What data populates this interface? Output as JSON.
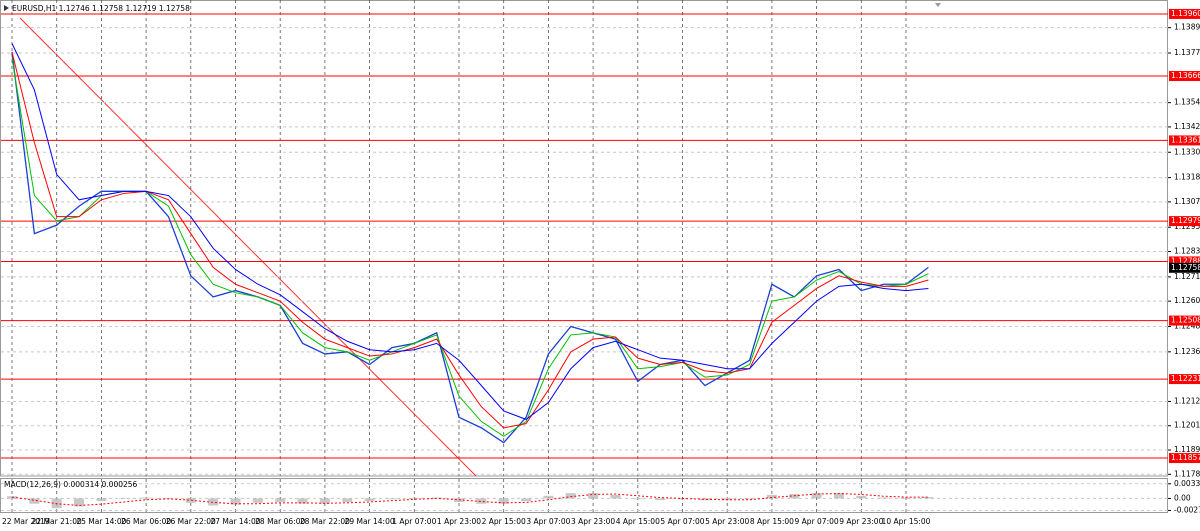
{
  "chart_data": [
    {
      "type": "line",
      "title": "EURUSD,H1 1.12746 1.12758 1.12719 1.12758",
      "categories": [
        "22 Mar 2019",
        null,
        "22 Mar 21:00",
        null,
        "25 Mar 14:00",
        null,
        "26 Mar 06:00",
        null,
        "26 Mar 22:00",
        null,
        "27 Mar 14:00",
        null,
        "28 Mar 06:00",
        null,
        "28 Mar 22:00",
        null,
        "29 Mar 14:00",
        null,
        "1 Apr 07:00",
        null,
        "1 Apr 23:00",
        null,
        "2 Apr 15:00",
        null,
        "3 Apr 07:00",
        null,
        "3 Apr 23:00",
        null,
        "4 Apr 15:00",
        null,
        "5 Apr 07:00",
        null,
        "5 Apr 23:00",
        null,
        "8 Apr 15:00",
        null,
        "9 Apr 07:00",
        null,
        "9 Apr 23:00",
        null,
        "10 Apr 15:00",
        null
      ],
      "series": [
        {
          "color": "#1a3fd6",
          "values": [
            1.1378,
            1.1292,
            1.1296,
            1.1305,
            1.1312,
            1.1312,
            1.1312,
            1.13,
            1.1272,
            1.1262,
            1.1265,
            1.1262,
            1.1258,
            1.124,
            1.1235,
            1.1236,
            1.123,
            1.1238,
            1.124,
            1.1245,
            1.1205,
            1.12,
            1.1193,
            1.1205,
            1.1235,
            1.1248,
            1.1245,
            1.1242,
            1.1222,
            1.123,
            1.1232,
            1.122,
            1.1226,
            1.1232,
            1.1268,
            1.1262,
            1.1272,
            1.1275,
            1.1265,
            1.1268,
            1.1268,
            1.1276
          ]
        },
        {
          "color": "#00c000",
          "values": [
            1.1375,
            1.131,
            1.1298,
            1.13,
            1.131,
            1.1312,
            1.1312,
            1.1305,
            1.1282,
            1.1268,
            1.1264,
            1.1262,
            1.1258,
            1.1245,
            1.1238,
            1.1236,
            1.1232,
            1.1236,
            1.124,
            1.1244,
            1.1215,
            1.1203,
            1.1196,
            1.1203,
            1.1228,
            1.1244,
            1.1245,
            1.1243,
            1.1228,
            1.1229,
            1.1231,
            1.1224,
            1.1225,
            1.123,
            1.126,
            1.1262,
            1.127,
            1.1274,
            1.1268,
            1.1267,
            1.1268,
            1.1273
          ]
        },
        {
          "color": "#ff0000",
          "values": [
            1.1378,
            1.1335,
            1.13,
            1.13,
            1.1308,
            1.1311,
            1.1312,
            1.1308,
            1.1292,
            1.1276,
            1.1268,
            1.1264,
            1.126,
            1.125,
            1.1242,
            1.1238,
            1.1234,
            1.1235,
            1.1238,
            1.1242,
            1.1225,
            1.121,
            1.12,
            1.1202,
            1.1218,
            1.1236,
            1.1242,
            1.1243,
            1.1233,
            1.123,
            1.1231,
            1.1227,
            1.1226,
            1.1228,
            1.125,
            1.1258,
            1.1266,
            1.1272,
            1.1269,
            1.1267,
            1.1267,
            1.127
          ]
        },
        {
          "color": "#0000ff",
          "values": [
            1.1382,
            1.136,
            1.132,
            1.1308,
            1.131,
            1.1312,
            1.1312,
            1.131,
            1.13,
            1.1285,
            1.1275,
            1.1268,
            1.1263,
            1.1255,
            1.1247,
            1.1241,
            1.1237,
            1.1236,
            1.1237,
            1.124,
            1.1232,
            1.122,
            1.1208,
            1.1204,
            1.1212,
            1.1228,
            1.1238,
            1.1241,
            1.1237,
            1.1233,
            1.1232,
            1.123,
            1.1228,
            1.1228,
            1.124,
            1.125,
            1.126,
            1.1267,
            1.1268,
            1.1266,
            1.1265,
            1.1266
          ]
        }
      ],
      "ylim": [
        1.11772,
        1.14026
      ],
      "yticks": [
        1.13895,
        1.13775,
        {
          "value": 1.1354,
          "label": "1.13540"
        },
        1.13425,
        1.13305,
        1.13185,
        {
          "value": 1.1307,
          "label": "1.13070"
        },
        {
          "value": 1.1295,
          "label": "1.12950"
        },
        1.12835,
        1.12715,
        {
          "value": 1.126,
          "label": "1.12600"
        },
        {
          "value": 1.1248,
          "label": "1.12480"
        },
        {
          "value": 1.1236,
          "label": "1.12360"
        },
        1.12125,
        {
          "value": 1.1201,
          "label": "1.12010"
        },
        1.11895,
        {
          "value": 1.1178,
          "label": "1.11780"
        }
      ],
      "levels": [
        {
          "value": 1.1396,
          "label": "1.13960"
        },
        1.13666,
        1.13361,
        1.12979,
        1.12788,
        1.12508,
        1.12231,
        1.11857
      ],
      "level_color": "#ff0000",
      "current_price": 1.12758,
      "grid": true
    },
    {
      "type": "bar",
      "title": "MACD(12,26,9) 0.000314 0.000256",
      "series": [
        {
          "color": "#b0b0b0",
          "values": [
            0.0005,
            -0.0012,
            -0.0022,
            -0.0018,
            -0.0006,
            0.0,
            0.0002,
            0.0001,
            -0.001,
            -0.0016,
            -0.0014,
            -0.001,
            -0.0008,
            -0.0012,
            -0.0012,
            -0.0008,
            -0.0006,
            -0.0002,
            0.0,
            0.0002,
            -0.0008,
            -0.0012,
            -0.0012,
            -0.0006,
            0.0006,
            0.0012,
            0.0012,
            0.0008,
            -0.0002,
            -0.0004,
            -0.0002,
            -0.0004,
            -0.0004,
            -0.0002,
            0.0008,
            0.001,
            0.0012,
            0.0012,
            0.0006,
            0.0002,
            0.0002,
            0.0003
          ]
        },
        {
          "color": "#ff0000",
          "values": [
            0.0003,
            -0.0004,
            -0.0012,
            -0.0016,
            -0.0013,
            -0.0008,
            -0.0003,
            -0.0001,
            -0.0004,
            -0.0009,
            -0.0012,
            -0.0012,
            -0.001,
            -0.001,
            -0.0011,
            -0.001,
            -0.0008,
            -0.0005,
            -0.0002,
            0.0,
            -0.0003,
            -0.0007,
            -0.001,
            -0.0009,
            -0.0003,
            0.0004,
            0.0009,
            0.001,
            0.0006,
            0.0002,
            0.0,
            -0.0002,
            -0.0003,
            -0.0003,
            0.0002,
            0.0006,
            0.001,
            0.0011,
            0.0009,
            0.0005,
            0.0003,
            0.0003
          ]
        }
      ],
      "ylim": [
        -0.0033,
        0.0044
      ],
      "yticks": [
        0.003314,
        {
          "value": 0,
          "label": "0.00"
        },
        -0.00272
      ],
      "grid": true
    }
  ]
}
